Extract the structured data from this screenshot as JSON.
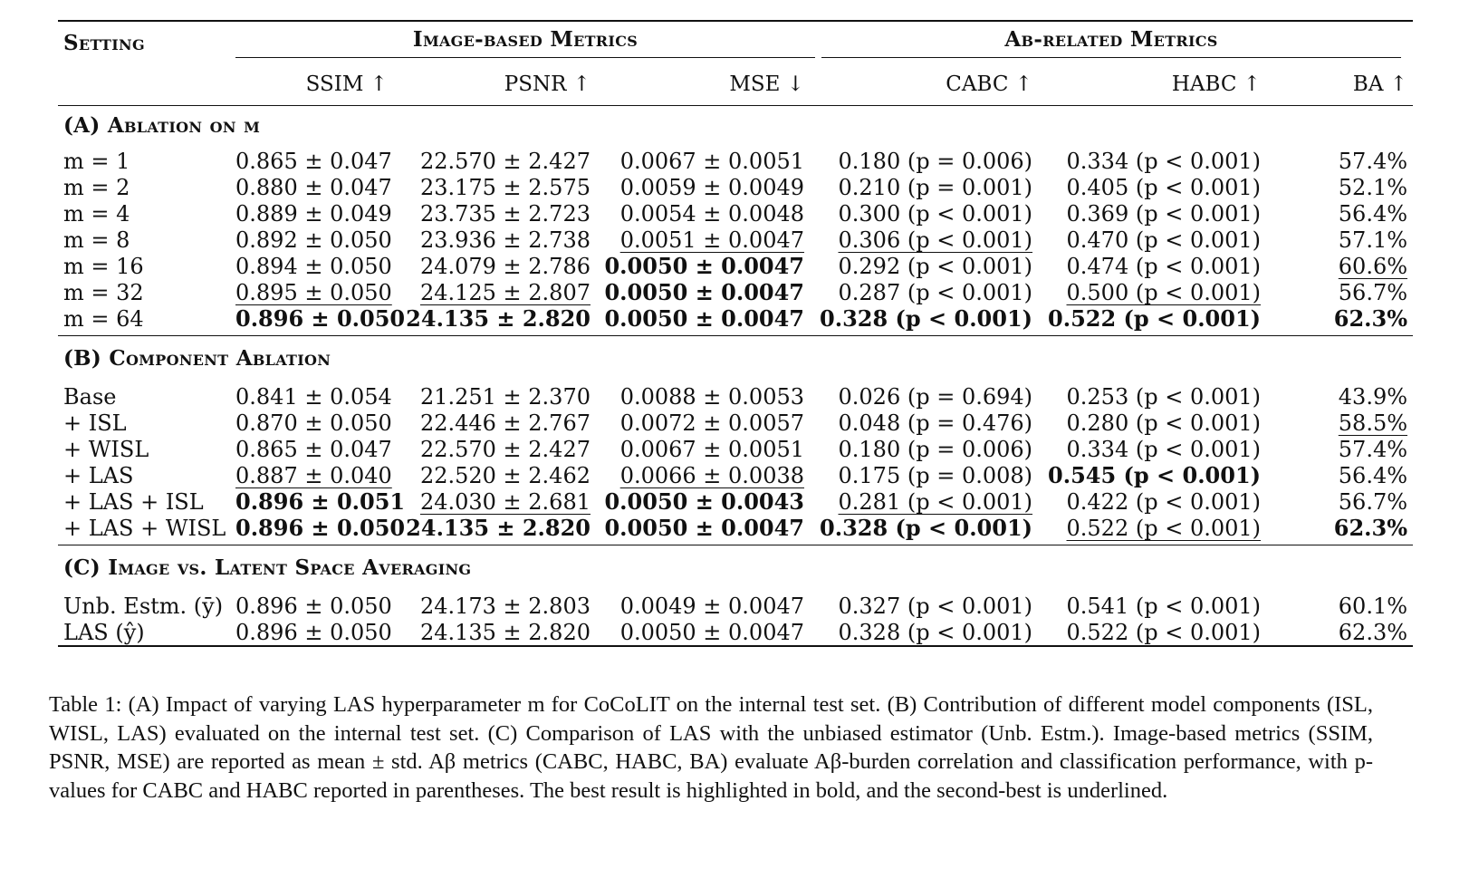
{
  "table": {
    "header": {
      "setting": "Setting",
      "group_image": "Image-based Metrics",
      "group_abeta": "Aβ-related Metrics",
      "columns": [
        "SSIM ↑",
        "PSNR ↑",
        "MSE ↓",
        "CABC ↑",
        "HABC ↑",
        "BA ↑"
      ]
    },
    "sections": [
      {
        "title": "(A) Ablation on m",
        "rows": [
          {
            "setting": "m = 1",
            "cells": [
              {
                "v": "0.865 ± 0.047"
              },
              {
                "v": "22.570 ± 2.427"
              },
              {
                "v": "0.0067 ± 0.0051"
              },
              {
                "v": "0.180 (p = 0.006)"
              },
              {
                "v": "0.334 (p < 0.001)"
              },
              {
                "v": "57.4%"
              }
            ]
          },
          {
            "setting": "m = 2",
            "cells": [
              {
                "v": "0.880 ± 0.047"
              },
              {
                "v": "23.175 ± 2.575"
              },
              {
                "v": "0.0059 ± 0.0049"
              },
              {
                "v": "0.210 (p = 0.001)"
              },
              {
                "v": "0.405 (p < 0.001)"
              },
              {
                "v": "52.1%"
              }
            ]
          },
          {
            "setting": "m = 4",
            "cells": [
              {
                "v": "0.889 ± 0.049"
              },
              {
                "v": "23.735 ± 2.723"
              },
              {
                "v": "0.0054 ± 0.0048"
              },
              {
                "v": "0.300 (p < 0.001)"
              },
              {
                "v": "0.369 (p < 0.001)"
              },
              {
                "v": "56.4%"
              }
            ]
          },
          {
            "setting": "m = 8",
            "cells": [
              {
                "v": "0.892 ± 0.050"
              },
              {
                "v": "23.936 ± 2.738"
              },
              {
                "v": "0.0051 ± 0.0047",
                "s": "u"
              },
              {
                "v": "0.306 (p < 0.001)",
                "s": "u"
              },
              {
                "v": "0.470 (p < 0.001)"
              },
              {
                "v": "57.1%"
              }
            ]
          },
          {
            "setting": "m = 16",
            "cells": [
              {
                "v": "0.894 ± 0.050"
              },
              {
                "v": "24.079 ± 2.786"
              },
              {
                "v": "0.0050 ± 0.0047",
                "s": "b"
              },
              {
                "v": "0.292 (p < 0.001)"
              },
              {
                "v": "0.474 (p < 0.001)"
              },
              {
                "v": "60.6%",
                "s": "u"
              }
            ]
          },
          {
            "setting": "m = 32",
            "cells": [
              {
                "v": "0.895 ± 0.050",
                "s": "u"
              },
              {
                "v": "24.125 ± 2.807",
                "s": "u"
              },
              {
                "v": "0.0050 ± 0.0047",
                "s": "b"
              },
              {
                "v": "0.287 (p < 0.001)"
              },
              {
                "v": "0.500 (p < 0.001)",
                "s": "u"
              },
              {
                "v": "56.7%"
              }
            ]
          },
          {
            "setting": "m = 64",
            "cells": [
              {
                "v": "0.896 ± 0.050",
                "s": "b"
              },
              {
                "v": "24.135 ± 2.820",
                "s": "b"
              },
              {
                "v": "0.0050 ± 0.0047",
                "s": "b"
              },
              {
                "v": "0.328 (p < 0.001)",
                "s": "b"
              },
              {
                "v": "0.522 (p < 0.001)",
                "s": "b"
              },
              {
                "v": "62.3%",
                "s": "b"
              }
            ]
          }
        ]
      },
      {
        "title": "(B) Component Ablation",
        "rows": [
          {
            "setting": "Base",
            "cells": [
              {
                "v": "0.841 ± 0.054"
              },
              {
                "v": "21.251 ± 2.370"
              },
              {
                "v": "0.0088 ± 0.0053"
              },
              {
                "v": "0.026 (p = 0.694)"
              },
              {
                "v": "0.253 (p < 0.001)"
              },
              {
                "v": "43.9%"
              }
            ]
          },
          {
            "setting": "+ ISL",
            "cells": [
              {
                "v": "0.870 ± 0.050"
              },
              {
                "v": "22.446 ± 2.767"
              },
              {
                "v": "0.0072 ± 0.0057"
              },
              {
                "v": "0.048 (p = 0.476)"
              },
              {
                "v": "0.280 (p < 0.001)"
              },
              {
                "v": "58.5%",
                "s": "u"
              }
            ]
          },
          {
            "setting": "+ WISL",
            "cells": [
              {
                "v": "0.865 ± 0.047"
              },
              {
                "v": "22.570 ± 2.427"
              },
              {
                "v": "0.0067 ± 0.0051"
              },
              {
                "v": "0.180 (p = 0.006)"
              },
              {
                "v": "0.334 (p < 0.001)"
              },
              {
                "v": "57.4%"
              }
            ]
          },
          {
            "setting": "+ LAS",
            "cells": [
              {
                "v": "0.887 ± 0.040",
                "s": "u"
              },
              {
                "v": "22.520 ± 2.462"
              },
              {
                "v": "0.0066 ± 0.0038",
                "s": "u"
              },
              {
                "v": "0.175 (p = 0.008)"
              },
              {
                "v": "0.545 (p < 0.001)",
                "s": "b"
              },
              {
                "v": "56.4%"
              }
            ]
          },
          {
            "setting": "+ LAS + ISL",
            "cells": [
              {
                "v": "0.896 ± 0.051",
                "s": "b"
              },
              {
                "v": "24.030 ± 2.681",
                "s": "u"
              },
              {
                "v": "0.0050 ± 0.0043",
                "s": "b"
              },
              {
                "v": "0.281 (p < 0.001)",
                "s": "u"
              },
              {
                "v": "0.422 (p < 0.001)"
              },
              {
                "v": "56.7%"
              }
            ]
          },
          {
            "setting": "+ LAS + WISL",
            "cells": [
              {
                "v": "0.896 ± 0.050",
                "s": "b"
              },
              {
                "v": "24.135 ± 2.820",
                "s": "b"
              },
              {
                "v": "0.0050 ± 0.0047",
                "s": "b"
              },
              {
                "v": "0.328 (p < 0.001)",
                "s": "b"
              },
              {
                "v": "0.522 (p < 0.001)",
                "s": "u"
              },
              {
                "v": "62.3%",
                "s": "b"
              }
            ]
          }
        ]
      },
      {
        "title": "(C) Image vs. Latent Space Averaging",
        "rows": [
          {
            "setting": "Unb. Estm. (ȳ)",
            "cells": [
              {
                "v": "0.896 ± 0.050"
              },
              {
                "v": "24.173 ± 2.803"
              },
              {
                "v": "0.0049 ± 0.0047"
              },
              {
                "v": "0.327 (p < 0.001)"
              },
              {
                "v": "0.541 (p < 0.001)"
              },
              {
                "v": "60.1%"
              }
            ]
          },
          {
            "setting": "LAS (ŷ)",
            "cells": [
              {
                "v": "0.896 ± 0.050"
              },
              {
                "v": "24.135 ± 2.820"
              },
              {
                "v": "0.0050 ± 0.0047"
              },
              {
                "v": "0.328 (p < 0.001)"
              },
              {
                "v": "0.522 (p < 0.001)"
              },
              {
                "v": "62.3%"
              }
            ]
          }
        ]
      }
    ]
  },
  "caption": {
    "lines": [
      "Table 1: (A) Impact of varying LAS hyperparameter m for CoCoLIT on the internal test set. (B) Contribution of different",
      "model components (ISL, WISL, LAS) evaluated on the internal test set. (C) Comparison of LAS with the unbiased estimator",
      "(Unb. Estm.). Image-based metrics (SSIM, PSNR, MSE) are reported as mean ± std. Aβ metrics (CABC, HABC, BA) evaluate",
      "Aβ-burden correlation and classification performance, with p-values for CABC and HABC reported in parentheses. The best",
      "result is highlighted in bold, and the second-best is underlined."
    ]
  }
}
